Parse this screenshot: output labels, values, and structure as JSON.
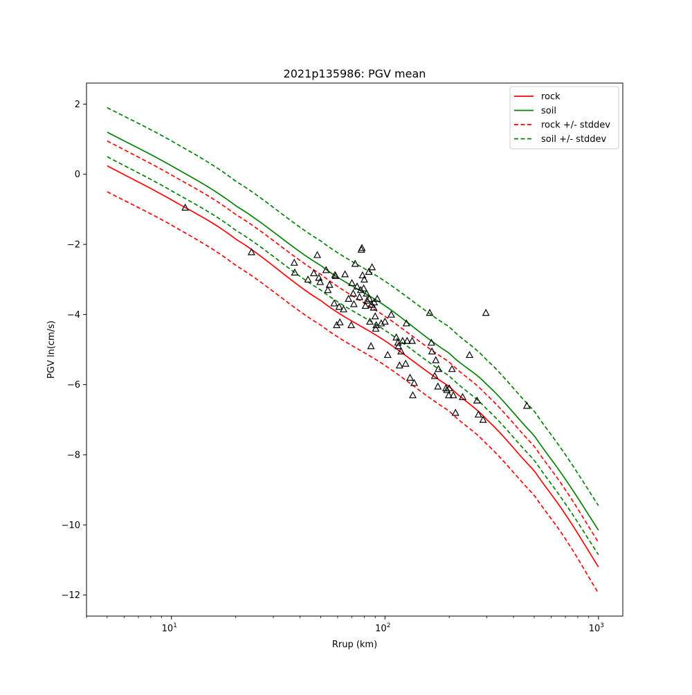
{
  "chart_data": {
    "type": "line",
    "title": "2021p135986: PGV mean",
    "xlabel": "Rrup (km)",
    "ylabel": "PGV ln(cm/s)",
    "xscale": "log",
    "xlim": [
      4,
      1300
    ],
    "ylim": [
      -12.6,
      2.6
    ],
    "x_ticks": [
      {
        "value": 10,
        "base": "10",
        "exp": "1"
      },
      {
        "value": 100,
        "base": "10",
        "exp": "2"
      },
      {
        "value": 1000,
        "base": "10",
        "exp": "3"
      }
    ],
    "y_ticks": [
      {
        "value": 2,
        "label": "2"
      },
      {
        "value": 0,
        "label": "0"
      },
      {
        "value": -2,
        "label": "−2"
      },
      {
        "value": -4,
        "label": "−4"
      },
      {
        "value": -6,
        "label": "−6"
      },
      {
        "value": -8,
        "label": "−8"
      },
      {
        "value": -10,
        "label": "−10"
      },
      {
        "value": -12,
        "label": "−12"
      }
    ],
    "grid": false,
    "legend_position": "top-right",
    "legend": [
      {
        "label": "rock",
        "color": "#ff0000",
        "style": "solid"
      },
      {
        "label": "soil",
        "color": "#008000",
        "style": "solid"
      },
      {
        "label": "rock +/- stddev",
        "color": "#ff0000",
        "style": "dashed"
      },
      {
        "label": "soil +/- stddev",
        "color": "#008000",
        "style": "dashed"
      }
    ],
    "series": [
      {
        "name": "rock",
        "color": "#ff0000",
        "dashed": false,
        "x": [
          5,
          10,
          20,
          50,
          100,
          200,
          300,
          500,
          700,
          1000
        ],
        "y": [
          0.24,
          -0.73,
          -1.85,
          -3.6,
          -4.75,
          -6.05,
          -7.0,
          -8.45,
          -9.7,
          -11.2
        ]
      },
      {
        "name": "soil",
        "color": "#008000",
        "dashed": false,
        "x": [
          5,
          10,
          20,
          50,
          100,
          200,
          300,
          500,
          700,
          1000
        ],
        "y": [
          1.2,
          0.24,
          -0.9,
          -2.6,
          -3.75,
          -5.1,
          -6.0,
          -7.45,
          -8.7,
          -10.15
        ]
      },
      {
        "name": "rock + stddev",
        "color": "#ff0000",
        "dashed": true,
        "x": [
          5,
          10,
          20,
          50,
          100,
          200,
          300,
          500,
          700,
          1000
        ],
        "y": [
          0.95,
          -0.02,
          -1.15,
          -2.85,
          -4.05,
          -5.35,
          -6.3,
          -7.75,
          -9.0,
          -10.5
        ]
      },
      {
        "name": "rock - stddev",
        "color": "#ff0000",
        "dashed": true,
        "x": [
          5,
          10,
          20,
          50,
          100,
          200,
          300,
          500,
          700,
          1000
        ],
        "y": [
          -0.5,
          -1.45,
          -2.6,
          -4.3,
          -5.45,
          -6.75,
          -7.7,
          -9.15,
          -10.4,
          -11.95
        ]
      },
      {
        "name": "soil + stddev",
        "color": "#008000",
        "dashed": true,
        "x": [
          5,
          10,
          20,
          50,
          100,
          200,
          300,
          500,
          700,
          1000
        ],
        "y": [
          1.9,
          0.95,
          -0.2,
          -1.9,
          -3.05,
          -4.35,
          -5.3,
          -6.75,
          -8.0,
          -9.45
        ]
      },
      {
        "name": "soil - stddev",
        "color": "#008000",
        "dashed": true,
        "x": [
          5,
          10,
          20,
          50,
          100,
          200,
          300,
          500,
          700,
          1000
        ],
        "y": [
          0.5,
          -0.47,
          -1.6,
          -3.3,
          -4.45,
          -5.75,
          -6.7,
          -8.15,
          -9.4,
          -10.85
        ]
      }
    ],
    "observations": {
      "marker": "triangle",
      "x": [
        11.6,
        23.7,
        37.6,
        37.8,
        43.6,
        46.4,
        48.2,
        49.0,
        49.7,
        53.0,
        54.0,
        55.0,
        57.8,
        58.3,
        58.8,
        59.4,
        61.0,
        61.5,
        64.0,
        65.0,
        67.5,
        69.5,
        70.0,
        71.0,
        71.5,
        72.5,
        74.0,
        76.0,
        77.0,
        77.5,
        78.0,
        78.5,
        79.5,
        80.0,
        81.0,
        82.0,
        82.5,
        84.0,
        84.5,
        85.0,
        86.0,
        86.5,
        87.0,
        88.5,
        89.0,
        90.0,
        90.5,
        91.0,
        92.0,
        96.0,
        100.0,
        103.0,
        107.0,
        113.0,
        115.0,
        115.5,
        117.0,
        119.0,
        121.0,
        125.0,
        126.0,
        127.0,
        131.0,
        134.0,
        135.0,
        137.0,
        162.0,
        165.0,
        166.0,
        171.0,
        173.0,
        177.0,
        178.0,
        193.0,
        195.0,
        199.0,
        200.0,
        206.0,
        209.0,
        214.0,
        231.0,
        249.0,
        270.0,
        274.0,
        288.0,
        297.0,
        462.0
      ],
      "y": [
        -0.95,
        -2.22,
        -2.52,
        -2.8,
        -3.0,
        -2.82,
        -2.3,
        -2.95,
        -3.07,
        -2.73,
        -3.3,
        -3.15,
        -3.68,
        -2.87,
        -2.9,
        -4.3,
        -3.78,
        -4.22,
        -3.85,
        -2.85,
        -3.55,
        -4.3,
        -3.1,
        -3.4,
        -3.7,
        -2.55,
        -3.2,
        -3.5,
        -3.3,
        -2.15,
        -2.1,
        -2.88,
        -3.25,
        -3.0,
        -3.75,
        -3.4,
        -3.6,
        -2.78,
        -3.55,
        -4.2,
        -4.9,
        -3.72,
        -2.65,
        -3.8,
        -3.65,
        -4.05,
        -4.4,
        -4.3,
        -3.55,
        -4.25,
        -4.2,
        -5.15,
        -4.0,
        -4.65,
        -4.8,
        -4.9,
        -5.45,
        -5.05,
        -4.75,
        -5.4,
        -4.25,
        -4.75,
        -5.8,
        -4.75,
        -6.3,
        -5.95,
        -3.95,
        -4.8,
        -5.05,
        -5.75,
        -5.3,
        -6.05,
        -5.55,
        -6.1,
        -6.15,
        -6.3,
        -6.1,
        -5.55,
        -6.3,
        -6.8,
        -6.35,
        -5.15,
        -6.45,
        -6.85,
        -7.0,
        -3.95,
        -6.6
      ]
    }
  }
}
